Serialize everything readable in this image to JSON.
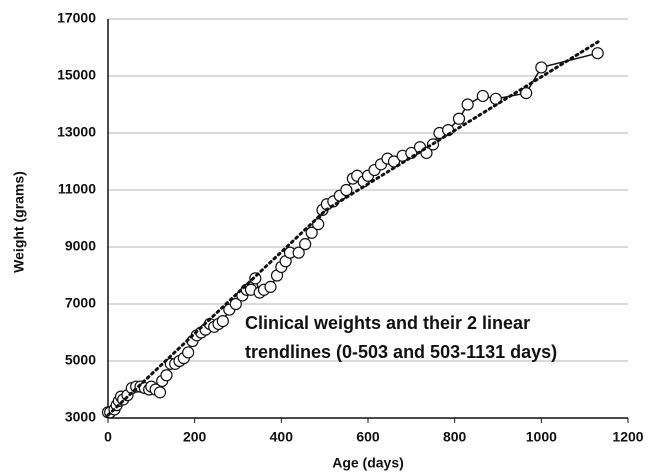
{
  "chart_data": {
    "type": "line",
    "x_label": "Age (days)",
    "y_label": "Weight (grams)",
    "annotation": [
      "Clinical weights and their 2 linear",
      "trendlines (0-503 and 503-1131 days)"
    ],
    "xlim": [
      0,
      1200
    ],
    "xticks": [
      0,
      200,
      400,
      600,
      800,
      1000,
      1200
    ],
    "ylim": [
      3000,
      17000
    ],
    "yticks": [
      3000,
      5000,
      7000,
      9000,
      11000,
      13000,
      15000,
      17000
    ],
    "grid": true,
    "series": [
      {
        "color": "#111111",
        "marker": "circle",
        "dash": "solid",
        "x": [
          0,
          5,
          15,
          20,
          25,
          30,
          35,
          45,
          55,
          65,
          75,
          85,
          95,
          100,
          110,
          120,
          125,
          135,
          145,
          155,
          165,
          175,
          185,
          195,
          205,
          215,
          225,
          235,
          245,
          255,
          265,
          280,
          295,
          310,
          320,
          330,
          340,
          350,
          360,
          375,
          390,
          400,
          410,
          420,
          440,
          455,
          470,
          485,
          495,
          505,
          520,
          535,
          550,
          565,
          575,
          590,
          600,
          615,
          630,
          645,
          660,
          680,
          700,
          720,
          735,
          750,
          765,
          785,
          810,
          830,
          865,
          895,
          965,
          1000,
          1130
        ],
        "values": [
          3200,
          3200,
          3300,
          3450,
          3600,
          3750,
          3650,
          3800,
          4050,
          4100,
          4100,
          4050,
          4000,
          4100,
          4000,
          3900,
          4300,
          4500,
          4900,
          4900,
          5000,
          5100,
          5300,
          5700,
          5900,
          6000,
          6100,
          6300,
          6200,
          6300,
          6400,
          6800,
          7000,
          7300,
          7500,
          7500,
          7900,
          7400,
          7500,
          7600,
          8000,
          8300,
          8500,
          8800,
          8800,
          9100,
          9500,
          9800,
          10300,
          10500,
          10600,
          10800,
          11000,
          11400,
          11500,
          11300,
          11500,
          11700,
          11900,
          12100,
          12000,
          12200,
          12300,
          12500,
          12300,
          12600,
          13000,
          13100,
          13500,
          14000,
          14300,
          14200,
          14400,
          15300,
          15800
        ]
      },
      {
        "color": "#111111",
        "marker": "none",
        "dash": "dotted",
        "x": [
          0,
          503
        ],
        "values": [
          3100,
          10300
        ]
      },
      {
        "color": "#111111",
        "marker": "none",
        "dash": "dotted",
        "x": [
          503,
          1131
        ],
        "values": [
          10300,
          16200
        ]
      }
    ]
  }
}
